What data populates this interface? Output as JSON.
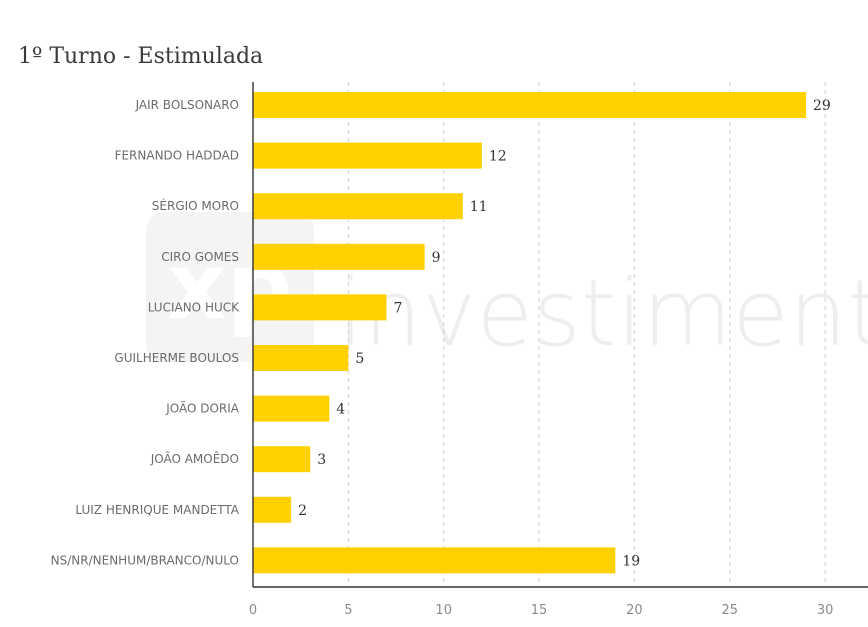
{
  "chart_data": {
    "type": "bar",
    "orientation": "horizontal",
    "title": "1º Turno - Estimulada",
    "categories": [
      "JAIR BOLSONARO",
      "FERNANDO HADDAD",
      "SÉRGIO MORO",
      "CIRO GOMES",
      "LUCIANO HUCK",
      "GUILHERME BOULOS",
      "JOÃO DORIA",
      "JOÃO AMOÊDO",
      "LUIZ HENRIQUE MANDETTA",
      "NS/NR/NENHUM/BRANCO/NULO"
    ],
    "values": [
      29,
      12,
      11,
      9,
      7,
      5,
      4,
      3,
      2,
      19
    ],
    "xlim": [
      0,
      32
    ],
    "xticks": [
      0,
      5,
      10,
      15,
      20,
      25,
      30
    ],
    "grid": true,
    "bar_color": "#FFD100"
  },
  "watermark": {
    "logo_text": "xp",
    "text": "investimentos"
  }
}
